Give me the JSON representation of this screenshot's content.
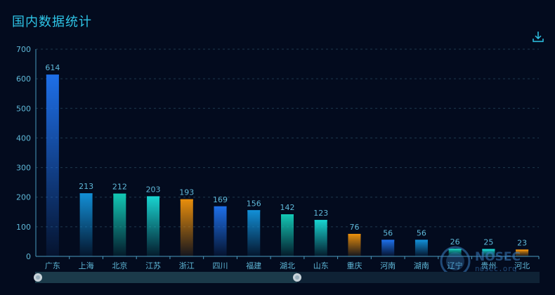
{
  "title": "国内数据统计",
  "toolbox": {
    "download_icon": "download-icon"
  },
  "watermark": {
    "text": "NOSEC",
    "url": "nosec.org",
    "icon": "nosec-logo-icon"
  },
  "datazoom": {
    "start_fraction": 0.0,
    "end_fraction": 0.52
  },
  "chart_data": {
    "type": "bar",
    "categories": [
      "广东",
      "上海",
      "北京",
      "江苏",
      "浙江",
      "四川",
      "福建",
      "湖北",
      "山东",
      "重庆",
      "河南",
      "湖南",
      "辽宁",
      "贵州",
      "河北"
    ],
    "values": [
      614,
      213,
      212,
      203,
      193,
      169,
      156,
      142,
      123,
      76,
      56,
      56,
      26,
      25,
      23
    ],
    "colors": [
      "#1e6fe8",
      "#128fd6",
      "#13c8b5",
      "#18d4d0",
      "#e88e0c",
      "#1e6fe8",
      "#128fd6",
      "#13c8b5",
      "#18d4d0",
      "#e88e0c",
      "#1e6fe8",
      "#128fd6",
      "#13c8b5",
      "#18d4d0",
      "#e88e0c"
    ],
    "ylim": [
      0,
      700
    ],
    "yticks": [
      0,
      100,
      200,
      300,
      400,
      500,
      600,
      700
    ],
    "grid": true,
    "data_labels": true
  }
}
